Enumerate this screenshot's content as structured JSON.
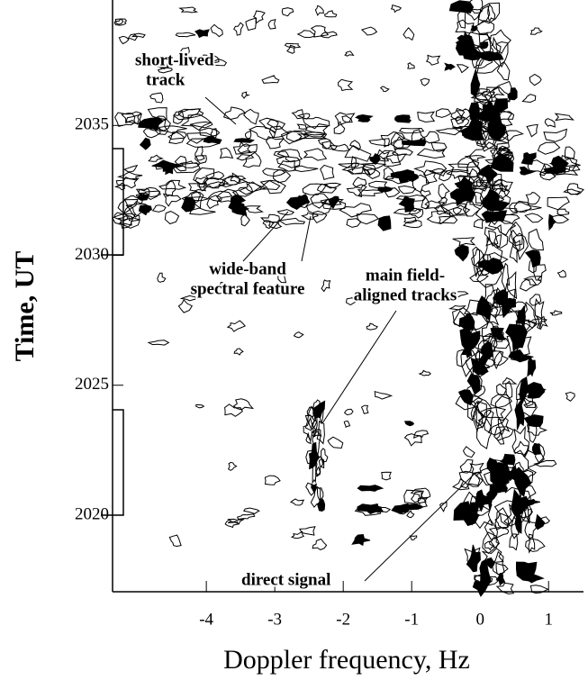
{
  "chart_data": {
    "type": "contour",
    "xlabel": "Doppler frequency, Hz",
    "ylabel": "Time, UT",
    "xlim": [
      -5.37,
      1.51
    ],
    "ylim": [
      2017.05,
      2039.83
    ],
    "xticks": [
      -4,
      -3,
      -2,
      -1,
      0,
      1
    ],
    "yticks": [
      2020,
      2025,
      2030,
      2035
    ],
    "annotations": [
      {
        "lines": [
          "short-lived",
          "track"
        ]
      },
      {
        "lines": [
          "wide-band",
          "spectral feature"
        ]
      },
      {
        "lines": [
          "main field-",
          "aligned tracks"
        ]
      },
      {
        "lines": [
          "direct signal"
        ]
      }
    ]
  }
}
